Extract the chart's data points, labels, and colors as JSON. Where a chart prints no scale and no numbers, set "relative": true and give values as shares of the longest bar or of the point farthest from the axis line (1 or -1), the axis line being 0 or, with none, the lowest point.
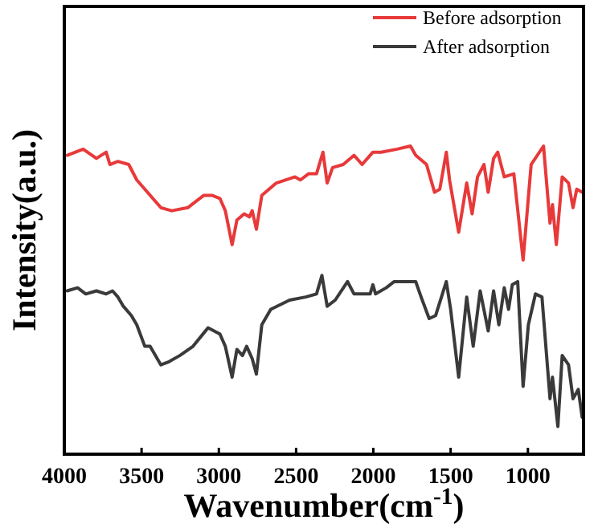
{
  "chart_data": {
    "type": "line",
    "relative": true,
    "xlabel": "Wavenumber(cm$^{-1}$)",
    "ylabel": "Intensity(a.u.)",
    "xlim": [
      4000,
      640
    ],
    "xticks": [
      4000,
      3500,
      3000,
      2500,
      2000,
      1500,
      1000
    ],
    "legend": "top right",
    "tick_labels": "x",
    "line_style": "solid",
    "marker": "none",
    "series": [
      {
        "name": "Before adsorption",
        "color": "#e8393a",
        "x": [
          3982,
          3878,
          3792,
          3729,
          3705,
          3653,
          3583,
          3531,
          3479,
          3375,
          3305,
          3201,
          3097,
          3045,
          2993,
          2958,
          2914,
          2883,
          2836,
          2802,
          2784,
          2757,
          2722,
          2628,
          2507,
          2472,
          2420,
          2368,
          2326,
          2299,
          2264,
          2195,
          2125,
          2073,
          2003,
          1951,
          1847,
          1760,
          1726,
          1656,
          1604,
          1570,
          1528,
          1507,
          1448,
          1396,
          1361,
          1326,
          1284,
          1257,
          1222,
          1195,
          1153,
          1091,
          1031,
          979,
          899,
          857,
          841,
          816,
          778,
          737,
          708,
          684,
          649
        ],
        "values": [
          0.97,
          0.99,
          0.96,
          0.98,
          0.94,
          0.95,
          0.94,
          0.89,
          0.86,
          0.8,
          0.79,
          0.8,
          0.84,
          0.84,
          0.83,
          0.79,
          0.68,
          0.76,
          0.78,
          0.77,
          0.79,
          0.73,
          0.84,
          0.88,
          0.9,
          0.89,
          0.91,
          0.91,
          0.98,
          0.88,
          0.93,
          0.94,
          0.97,
          0.94,
          0.98,
          0.98,
          0.99,
          1.0,
          0.97,
          0.94,
          0.85,
          0.86,
          0.98,
          0.89,
          0.72,
          0.88,
          0.78,
          0.9,
          0.94,
          0.85,
          0.96,
          0.98,
          0.9,
          0.91,
          0.63,
          0.94,
          1.0,
          0.75,
          0.81,
          0.68,
          0.9,
          0.88,
          0.8,
          0.86,
          0.85
        ]
      },
      {
        "name": "After adsorption",
        "color": "#3a3a3a",
        "x": [
          3982,
          3914,
          3861,
          3792,
          3729,
          3688,
          3653,
          3618,
          3566,
          3531,
          3479,
          3445,
          3375,
          3323,
          3253,
          3167,
          3070,
          2993,
          2958,
          2914,
          2883,
          2847,
          2820,
          2784,
          2757,
          2722,
          2664,
          2542,
          2438,
          2368,
          2333,
          2299,
          2247,
          2167,
          2125,
          2021,
          2003,
          1986,
          1917,
          1865,
          1726,
          1691,
          1639,
          1597,
          1528,
          1500,
          1448,
          1396,
          1354,
          1309,
          1257,
          1222,
          1188,
          1153,
          1125,
          1101,
          1066,
          1031,
          997,
          951,
          909,
          857,
          841,
          806,
          778,
          737,
          708,
          674,
          649
        ],
        "values": [
          0.53,
          0.54,
          0.52,
          0.53,
          0.52,
          0.53,
          0.51,
          0.48,
          0.45,
          0.42,
          0.35,
          0.35,
          0.29,
          0.3,
          0.32,
          0.35,
          0.41,
          0.39,
          0.35,
          0.25,
          0.34,
          0.32,
          0.35,
          0.31,
          0.26,
          0.42,
          0.47,
          0.5,
          0.51,
          0.52,
          0.58,
          0.48,
          0.5,
          0.56,
          0.52,
          0.52,
          0.55,
          0.52,
          0.54,
          0.56,
          0.56,
          0.51,
          0.44,
          0.45,
          0.56,
          0.47,
          0.25,
          0.51,
          0.35,
          0.53,
          0.4,
          0.53,
          0.42,
          0.54,
          0.47,
          0.55,
          0.56,
          0.22,
          0.42,
          0.52,
          0.51,
          0.18,
          0.25,
          0.09,
          0.32,
          0.29,
          0.18,
          0.21,
          0.12
        ]
      }
    ]
  }
}
